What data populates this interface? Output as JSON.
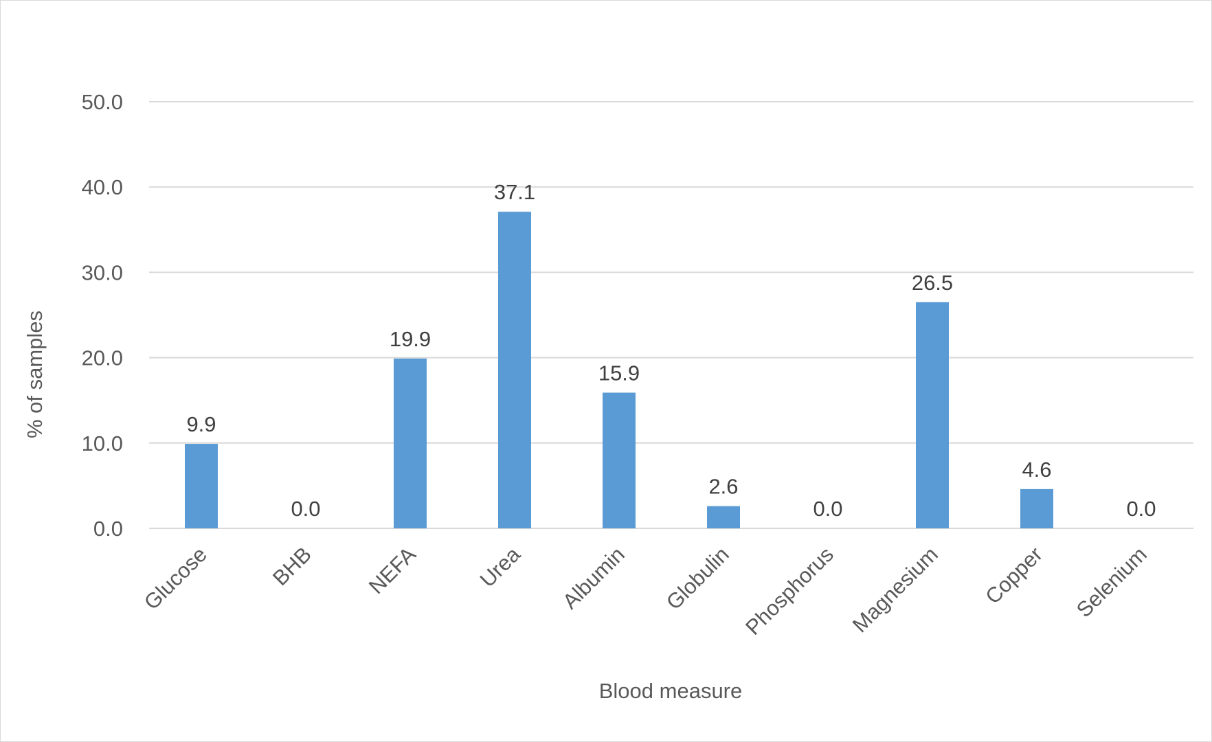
{
  "chart_data": {
    "type": "bar",
    "title": "",
    "xlabel": "Blood measure",
    "ylabel": "% of samples",
    "categories": [
      "Glucose",
      "BHB",
      "NEFA",
      "Urea",
      "Albumin",
      "Globulin",
      "Phosphorus",
      "Magnesium",
      "Copper",
      "Selenium"
    ],
    "values": [
      9.9,
      0.0,
      19.9,
      37.1,
      15.9,
      2.6,
      0.0,
      26.5,
      4.6,
      0.0
    ],
    "data_labels": [
      "9.9",
      "0.0",
      "19.9",
      "37.1",
      "15.9",
      "2.6",
      "0.0",
      "26.5",
      "4.6",
      "0.0"
    ],
    "yticks": [
      "0.0",
      "10.0",
      "20.0",
      "30.0",
      "40.0",
      "50.0"
    ],
    "ylim": [
      0,
      50
    ],
    "grid": true,
    "legend": "none",
    "bar_color": "#5b9bd5",
    "grid_color": "#d9d9d9"
  }
}
